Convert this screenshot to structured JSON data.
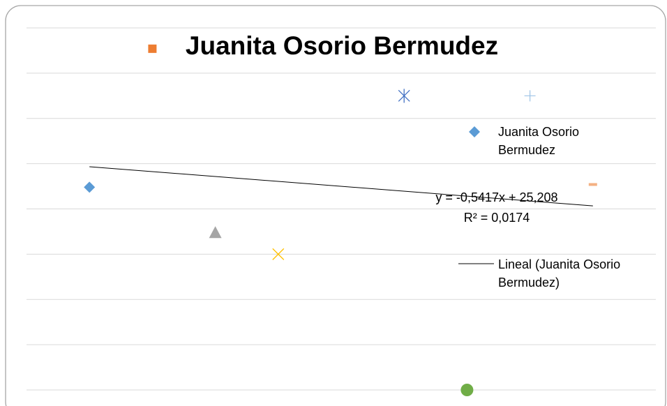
{
  "chart_data": {
    "type": "scatter",
    "title": "Juanita Osorio Bermudez",
    "series": [
      {
        "name": "Juanita Osorio Bermudez",
        "x": [
          1,
          2,
          3,
          4,
          6,
          7,
          8,
          9
        ],
        "values": [
          22.4,
          37.7,
          17.4,
          15.0,
          32.5,
          0,
          32.5,
          22.7
        ],
        "markers": [
          "diamond",
          "square",
          "triangle",
          "x",
          "star",
          "circle",
          "plus",
          "dash"
        ],
        "colors": [
          "#5b9bd5",
          "#ed7d31",
          "#a5a5a5",
          "#ffc000",
          "#4472c4",
          "#70ad47",
          "#9dc3e6",
          "#f4b183"
        ],
        "color": "#5b9bd5"
      }
    ],
    "trendline": {
      "name": "Lineal (Juanita Osorio Bermudez)",
      "slope": -0.5417,
      "intercept": 25.208,
      "equation": "y = -0,5417x + 25,208",
      "r2": "R² = 0,0174",
      "color": "#000000"
    },
    "xlim": [
      0,
      10
    ],
    "ylim": [
      0,
      40
    ],
    "yticks": [
      0,
      5,
      10,
      15,
      20,
      25,
      30,
      35,
      40
    ],
    "grid": true
  }
}
